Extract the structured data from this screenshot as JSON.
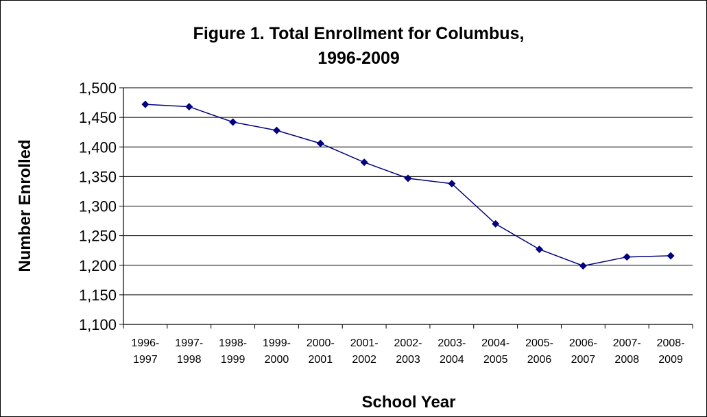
{
  "chart_data": {
    "type": "line",
    "title_line1": "Figure 1. Total Enrollment for Columbus,",
    "title_line2": "1996-2009",
    "xlabel": "School Year",
    "ylabel": "Number Enrolled",
    "ylim": [
      1100,
      1500
    ],
    "ytick_values": [
      1100,
      1150,
      1200,
      1250,
      1300,
      1350,
      1400,
      1450,
      1500
    ],
    "ytick_labels": [
      "1,100",
      "1,150",
      "1,200",
      "1,250",
      "1,300",
      "1,350",
      "1,400",
      "1,450",
      "1,500"
    ],
    "categories": [
      [
        "1996-",
        "1997"
      ],
      [
        "1997-",
        "1998"
      ],
      [
        "1998-",
        "1999"
      ],
      [
        "1999-",
        "2000"
      ],
      [
        "2000-",
        "2001"
      ],
      [
        "2001-",
        "2002"
      ],
      [
        "2002-",
        "2003"
      ],
      [
        "2003-",
        "2004"
      ],
      [
        "2004-",
        "2005"
      ],
      [
        "2005-",
        "2006"
      ],
      [
        "2006-",
        "2007"
      ],
      [
        "2007-",
        "2008"
      ],
      [
        "2008-",
        "2009"
      ]
    ],
    "values": [
      1472,
      1468,
      1442,
      1428,
      1406,
      1374,
      1347,
      1338,
      1270,
      1227,
      1199,
      1214,
      1216
    ],
    "grid": true,
    "legend": "none",
    "line_color": "#000080",
    "marker_color": "#000080"
  }
}
